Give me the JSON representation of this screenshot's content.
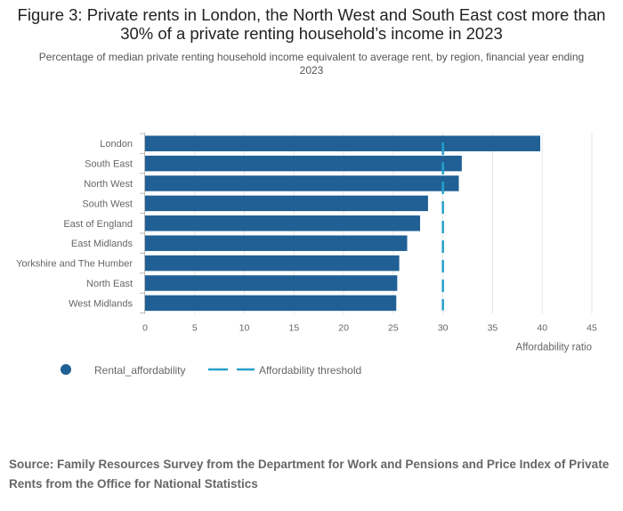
{
  "title": "Figure 3: Private rents in London, the North West and South East cost more than 30% of a private renting household’s income in 2023",
  "subtitle": "Percentage of median private renting household income equivalent to average rent, by region, financial year ending 2023",
  "source": "Source: Family Resources Survey from the Department for Work and Pensions and Price Index of Private Rents from the Office for National Statistics",
  "colors": {
    "bar": "#206095",
    "threshold": "#27a0cc",
    "grid": "#e6e6e6",
    "axis_text": "#666666"
  },
  "chart_data": {
    "type": "bar",
    "orientation": "horizontal",
    "categories": [
      "London",
      "South East",
      "North West",
      "South West",
      "East of England",
      "East Midlands",
      "Yorkshire and The Humber",
      "North East",
      "West Midlands"
    ],
    "series": [
      {
        "name": "Rental_affordability",
        "values": [
          39.8,
          31.9,
          31.6,
          28.5,
          27.7,
          26.4,
          25.6,
          25.4,
          25.3
        ]
      }
    ],
    "threshold": {
      "name": "Affordability threshold",
      "value": 30
    },
    "xlabel": "Affordability ratio",
    "ylabel": "",
    "xlim": [
      0,
      45
    ],
    "xticks": [
      0,
      5,
      10,
      15,
      20,
      25,
      30,
      35,
      40,
      45
    ],
    "grid": true,
    "legend": "bottom-left"
  }
}
